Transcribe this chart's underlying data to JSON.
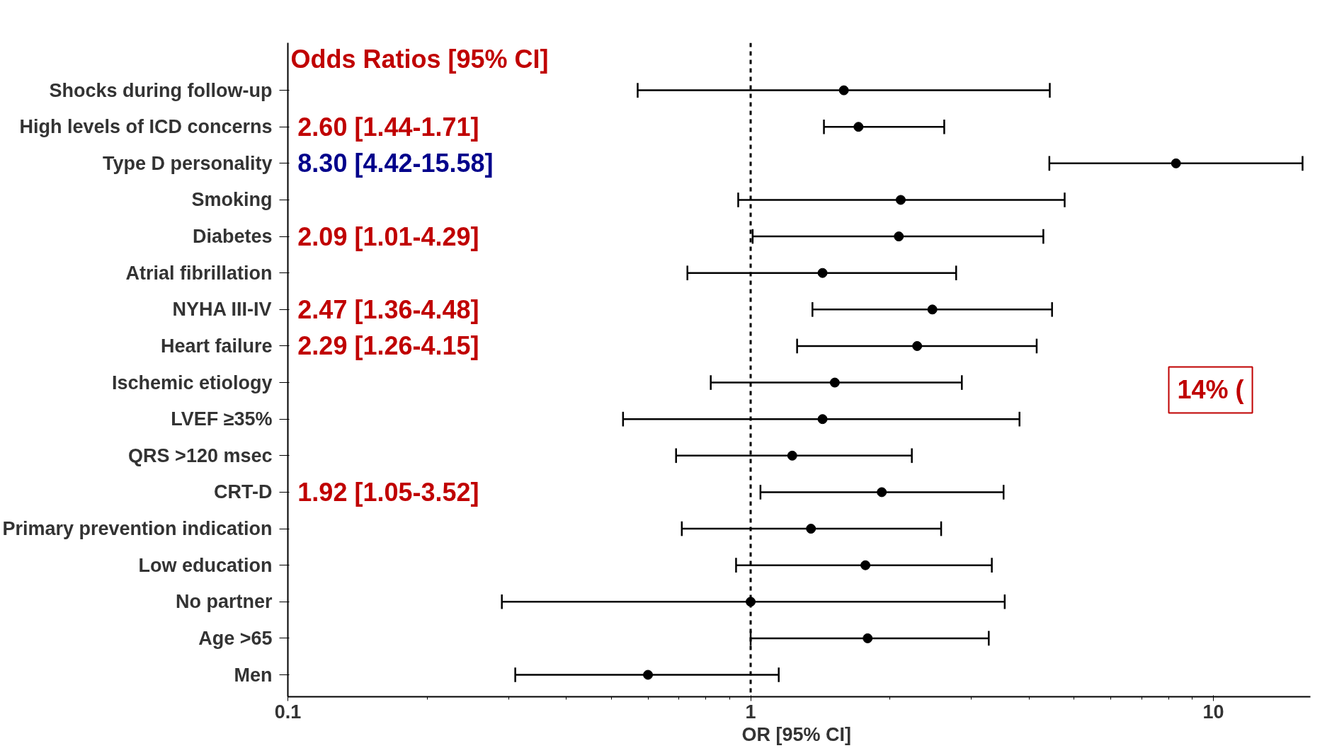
{
  "chart_data": {
    "type": "scatter",
    "orientation": "horizontal",
    "xlabel": "OR [95%  CI]",
    "log": "x",
    "xlim": [
      0.1,
      16.2
    ],
    "xticks": [
      0.1,
      1,
      10
    ],
    "marker": "circle",
    "grid": false,
    "color": "#000000",
    "categories": [
      "Shocks during follow-up",
      "High levels of ICD concerns",
      "Type D personality",
      "Smoking",
      "Diabetes",
      "Atrial fibrillation",
      "NYHA III-IV",
      "Heart failure",
      "Ischemic etiology",
      "LVEF ≥35%",
      "QRS >120 msec",
      "CRT-D",
      "Primary prevention indication",
      "Low education",
      "No partner",
      "Age >65",
      "Men"
    ],
    "values": [
      1.59,
      1.71,
      8.3,
      2.11,
      2.09,
      1.43,
      2.47,
      2.29,
      1.52,
      1.43,
      1.23,
      1.92,
      1.35,
      1.77,
      1.0,
      1.79,
      0.6
    ],
    "errors": [
      [
        0.57,
        4.43
      ],
      [
        1.44,
        2.62
      ],
      [
        4.42,
        15.58
      ],
      [
        0.94,
        4.77
      ],
      [
        1.01,
        4.29
      ],
      [
        0.73,
        2.78
      ],
      [
        1.36,
        4.48
      ],
      [
        1.26,
        4.15
      ],
      [
        0.82,
        2.86
      ],
      [
        0.53,
        3.81
      ],
      [
        0.69,
        2.23
      ],
      [
        1.05,
        3.52
      ],
      [
        0.71,
        2.58
      ],
      [
        0.93,
        3.32
      ],
      [
        0.29,
        3.54
      ],
      [
        1.0,
        3.27
      ],
      [
        0.31,
        1.15
      ]
    ],
    "ref_lines": [
      {
        "axis": "x",
        "value": 1,
        "line_style": "dashed",
        "color": "#000000"
      }
    ],
    "annotations": [
      "Odds Ratios [95% CI]",
      "14% (",
      "2.60 [1.44-1.71]",
      "8.30 [4.42-15.58]",
      "2.09 [1.01-4.29]",
      "2.47 [1.36-4.48]",
      "2.29 [1.26-4.15]",
      "1.92 [1.05-3.52]"
    ]
  }
}
